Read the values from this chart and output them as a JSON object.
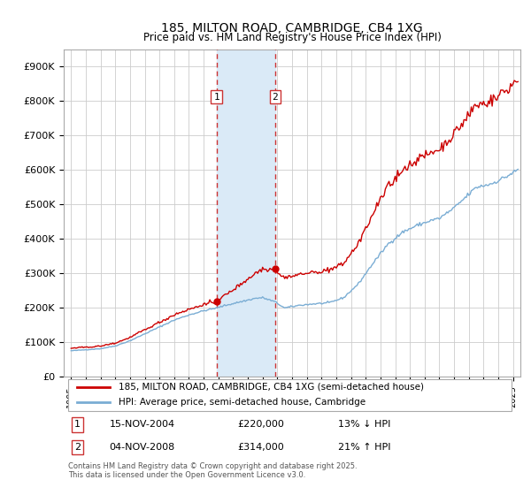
{
  "title": "185, MILTON ROAD, CAMBRIDGE, CB4 1XG",
  "subtitle": "Price paid vs. HM Land Registry's House Price Index (HPI)",
  "ylabel_ticks": [
    "£0",
    "£100K",
    "£200K",
    "£300K",
    "£400K",
    "£500K",
    "£600K",
    "£700K",
    "£800K",
    "£900K"
  ],
  "ytick_values": [
    0,
    100000,
    200000,
    300000,
    400000,
    500000,
    600000,
    700000,
    800000,
    900000
  ],
  "ylim": [
    0,
    950000
  ],
  "xlim_start": 1994.5,
  "xlim_end": 2025.5,
  "sale1_date": 2004.87,
  "sale1_price": 220000,
  "sale1_label": "1",
  "sale2_date": 2008.84,
  "sale2_price": 314000,
  "sale2_label": "2",
  "legend_line1": "185, MILTON ROAD, CAMBRIDGE, CB4 1XG (semi-detached house)",
  "legend_line2": "HPI: Average price, semi-detached house, Cambridge",
  "annotation1_box": "1",
  "annotation1_date": "15-NOV-2004",
  "annotation1_price": "£220,000",
  "annotation1_hpi": "13% ↓ HPI",
  "annotation2_box": "2",
  "annotation2_date": "04-NOV-2008",
  "annotation2_price": "£314,000",
  "annotation2_hpi": "21% ↑ HPI",
  "footer": "Contains HM Land Registry data © Crown copyright and database right 2025.\nThis data is licensed under the Open Government Licence v3.0.",
  "price_color": "#cc0000",
  "hpi_color": "#7aadd4",
  "shade_color": "#daeaf7",
  "background_color": "#ffffff",
  "grid_color": "#cccccc",
  "vline_color": "#cc3333"
}
